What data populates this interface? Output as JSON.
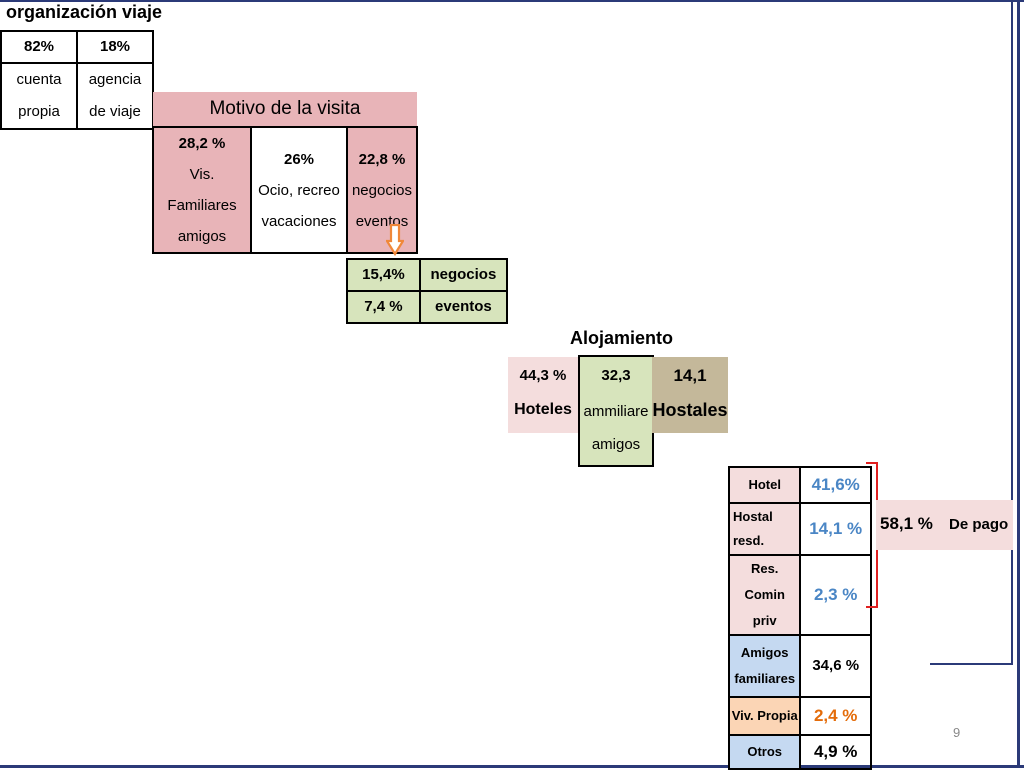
{
  "organizacion": {
    "title": "organización viaje",
    "pct1": "82%",
    "pct2": "18%",
    "label1a": "cuenta",
    "label1b": "propia",
    "label2a": "agencia",
    "label2b": "de viaje"
  },
  "motivo": {
    "title": "Motivo de la visita",
    "items": [
      {
        "pct": "28,2 %",
        "line1": "Vis. Familiares",
        "line2": "amigos"
      },
      {
        "pct": "26%",
        "line1": "Ocio, recreo",
        "line2": "vacaciones"
      },
      {
        "pct": "22,8 %",
        "line1": "negocios",
        "line2": "eventos"
      }
    ]
  },
  "negocios": {
    "rows": [
      {
        "pct": "15,4%",
        "label": "negocios"
      },
      {
        "pct": "7,4 %",
        "label": "eventos"
      }
    ]
  },
  "alojamiento": {
    "title": "Alojamiento",
    "hoteles_pct": "44,3 %",
    "hoteles_label": "Hoteles",
    "familiares_pct": "32,3",
    "familiares_line1": "ammiliare",
    "familiares_line2": "amigos",
    "hostales_pct": "14,1",
    "hostales_label": "Hostales"
  },
  "detalle": {
    "rows": [
      {
        "label": "Hotel",
        "value": "41,6%"
      },
      {
        "label1": "Hostal",
        "label2": "resd.",
        "value": "14,1 %"
      },
      {
        "label1": "Res. Comin",
        "label2": "priv",
        "value": "2,3 %"
      },
      {
        "label1": "Amigos",
        "label2": "familiares",
        "value": "34,6 %"
      },
      {
        "label": "Viv. Propia",
        "value": "2,4 %"
      },
      {
        "label": "Otros",
        "value": "4,9 %"
      }
    ],
    "pago_pct": "58,1 %",
    "pago_label": "De pago"
  },
  "page_number": "9",
  "colors": {
    "pink": "#e8b4b8",
    "green": "#d7e4bc",
    "tan": "#c4b89a",
    "blue_text": "#4a86c5",
    "orange_text": "#e46c0a",
    "bracket": "#e02020",
    "frame": "#2b3a78"
  }
}
